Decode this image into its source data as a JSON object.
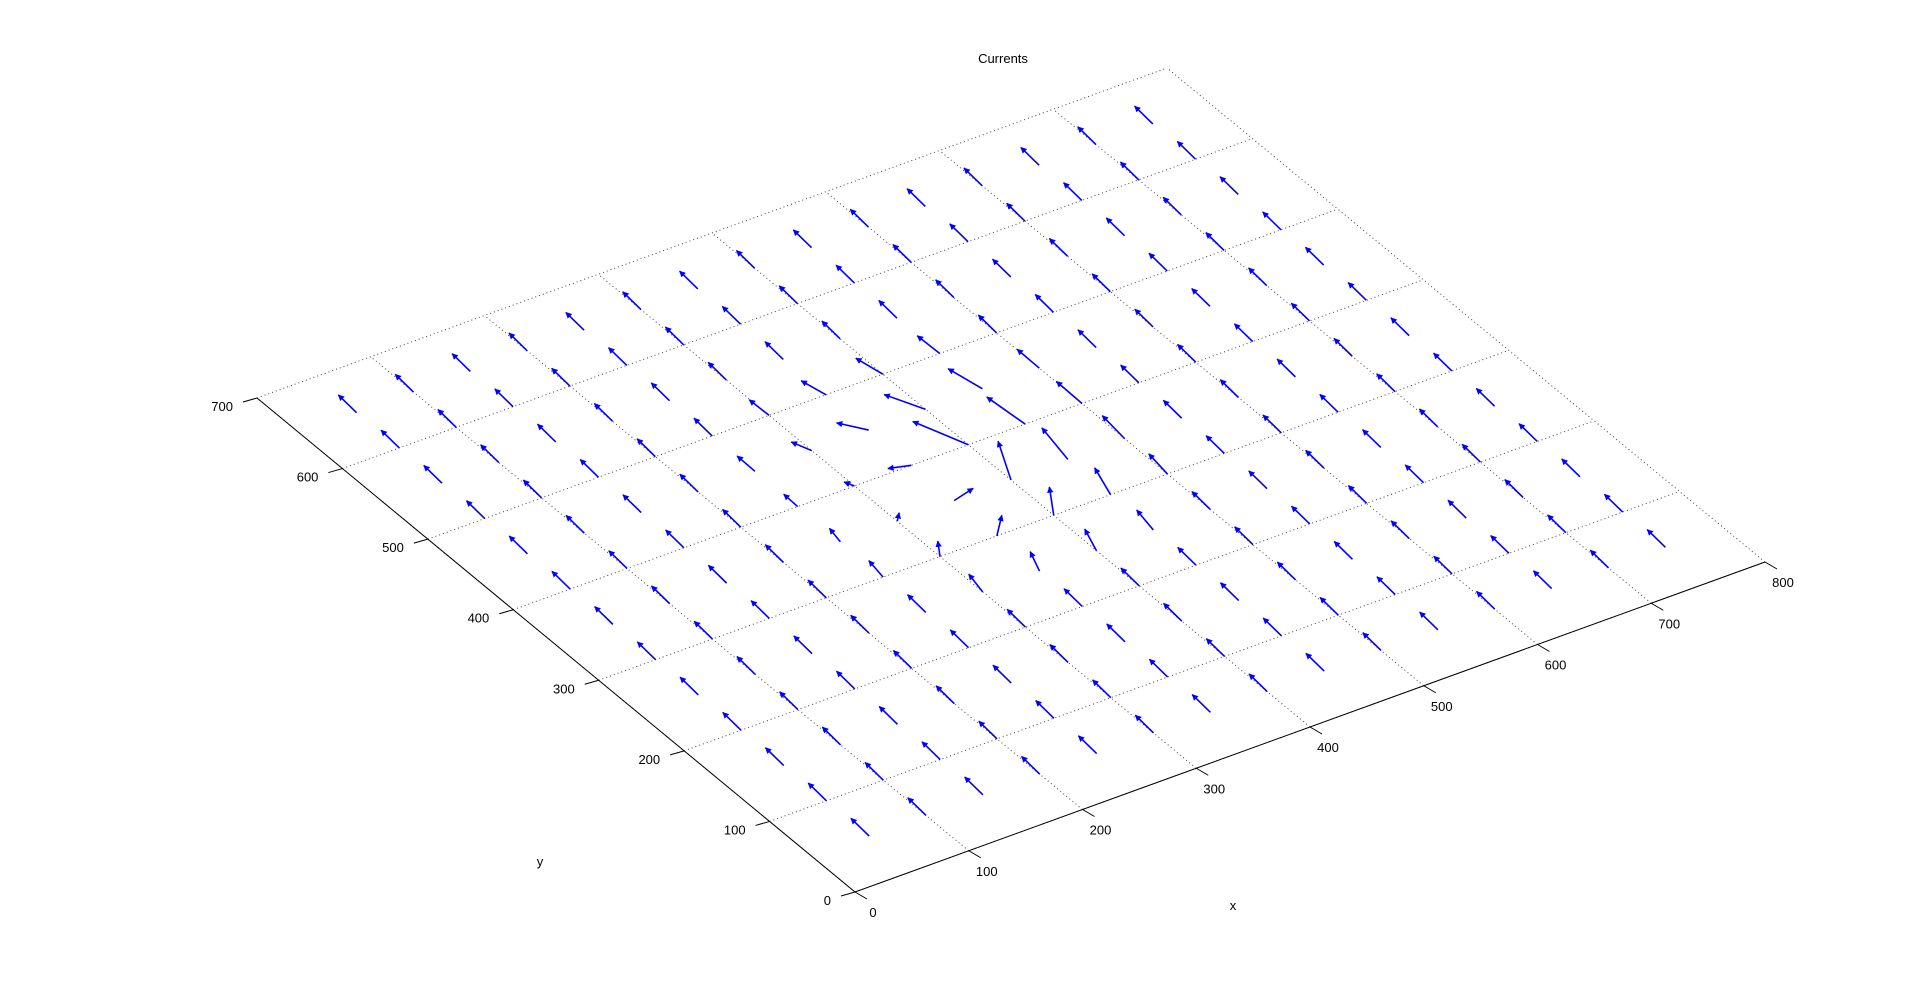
{
  "chart_data": {
    "type": "quiver",
    "title": "Currents",
    "xlabel": "x",
    "ylabel": "y",
    "xlim": [
      0,
      800
    ],
    "ylim": [
      0,
      700
    ],
    "x_ticks": [
      0,
      100,
      200,
      300,
      400,
      500,
      600,
      700,
      800
    ],
    "y_ticks": [
      0,
      100,
      200,
      300,
      400,
      500,
      600,
      700
    ],
    "grid": true,
    "grid_x": [
      0,
      100,
      200,
      300,
      400,
      500,
      600,
      700,
      800
    ],
    "grid_y": [
      0,
      100,
      200,
      300,
      400,
      500,
      600,
      700
    ],
    "arrow_color": "#0000ff",
    "vortex": {
      "x": 375,
      "y": 375,
      "radius": 160
    },
    "field_x": [
      50,
      100,
      150,
      200,
      250,
      300,
      350,
      400,
      450,
      500,
      550,
      600,
      650,
      700,
      750
    ],
    "field_y": [
      50,
      100,
      150,
      200,
      250,
      300,
      350,
      400,
      450,
      500,
      550,
      600,
      650
    ],
    "background_flow": {
      "u": 2,
      "v": 24
    }
  }
}
